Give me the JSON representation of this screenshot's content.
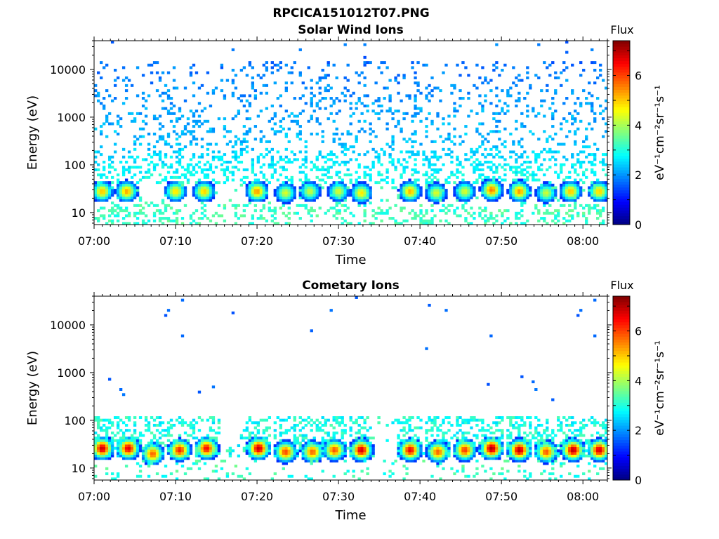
{
  "figure_title": "RPCICA151012T07.PNG",
  "colorbar": {
    "title": "Flux",
    "label": "eV⁻¹cm⁻²sr⁻¹s⁻¹",
    "ticks": [
      "0",
      "2",
      "4",
      "6"
    ],
    "range": [
      0,
      7.4
    ],
    "colormap": "jet"
  },
  "chart_data": [
    {
      "type": "heatmap",
      "title": "Solar Wind Ions",
      "xlabel": "Time",
      "ylabel": "Energy (eV)",
      "x_ticks": [
        "07:00",
        "07:10",
        "07:20",
        "07:30",
        "07:40",
        "07:50",
        "08:00"
      ],
      "y_ticks": [
        "10",
        "100",
        "1000",
        "10000"
      ],
      "y_scale": "log",
      "xlim": [
        "07:00",
        "08:03"
      ],
      "ylim": [
        5.6,
        40000
      ],
      "value_range": [
        0,
        7.4
      ],
      "bursts": [
        {
          "time_min": 1.0,
          "energy_ev": 28,
          "flux": 5.1
        },
        {
          "time_min": 4.0,
          "energy_ev": 28,
          "flux": 5.3
        },
        {
          "time_min": 10.0,
          "energy_ev": 28,
          "flux": 4.9
        },
        {
          "time_min": 13.5,
          "energy_ev": 28,
          "flux": 5.0
        },
        {
          "time_min": 20.0,
          "energy_ev": 28,
          "flux": 5.4
        },
        {
          "time_min": 23.5,
          "energy_ev": 26,
          "flux": 4.4
        },
        {
          "time_min": 26.5,
          "energy_ev": 28,
          "flux": 4.3
        },
        {
          "time_min": 30.0,
          "energy_ev": 28,
          "flux": 4.4
        },
        {
          "time_min": 32.8,
          "energy_ev": 26,
          "flux": 4.8
        },
        {
          "time_min": 38.8,
          "energy_ev": 28,
          "flux": 5.2
        },
        {
          "time_min": 42.0,
          "energy_ev": 26,
          "flux": 4.4
        },
        {
          "time_min": 45.5,
          "energy_ev": 28,
          "flux": 4.4
        },
        {
          "time_min": 48.8,
          "energy_ev": 30,
          "flux": 5.6
        },
        {
          "time_min": 52.2,
          "energy_ev": 28,
          "flux": 5.4
        },
        {
          "time_min": 55.5,
          "energy_ev": 26,
          "flux": 4.3
        },
        {
          "time_min": 58.5,
          "energy_ev": 28,
          "flux": 5.1
        },
        {
          "time_min": 62.0,
          "energy_ev": 28,
          "flux": 5.0
        }
      ]
    },
    {
      "type": "heatmap",
      "title": "Cometary Ions",
      "xlabel": "Time",
      "ylabel": "Energy (eV)",
      "x_ticks": [
        "07:00",
        "07:10",
        "07:20",
        "07:30",
        "07:40",
        "07:50",
        "08:00"
      ],
      "y_ticks": [
        "10",
        "100",
        "1000",
        "10000"
      ],
      "y_scale": "log",
      "xlim": [
        "07:00",
        "08:03"
      ],
      "ylim": [
        5.6,
        40000
      ],
      "value_range": [
        0,
        7.4
      ],
      "bursts": [
        {
          "time_min": 1.0,
          "energy_ev": 26,
          "flux": 6.9
        },
        {
          "time_min": 4.2,
          "energy_ev": 26,
          "flux": 6.7
        },
        {
          "time_min": 7.2,
          "energy_ev": 20,
          "flux": 5.8
        },
        {
          "time_min": 10.5,
          "energy_ev": 24,
          "flux": 6.3
        },
        {
          "time_min": 13.8,
          "energy_ev": 26,
          "flux": 6.5
        },
        {
          "time_min": 20.2,
          "energy_ev": 26,
          "flux": 6.9
        },
        {
          "time_min": 23.5,
          "energy_ev": 22,
          "flux": 6.0
        },
        {
          "time_min": 26.8,
          "energy_ev": 22,
          "flux": 5.8
        },
        {
          "time_min": 29.5,
          "energy_ev": 24,
          "flux": 5.9
        },
        {
          "time_min": 32.8,
          "energy_ev": 24,
          "flux": 6.8
        },
        {
          "time_min": 38.8,
          "energy_ev": 24,
          "flux": 6.6
        },
        {
          "time_min": 42.2,
          "energy_ev": 22,
          "flux": 5.8
        },
        {
          "time_min": 45.5,
          "energy_ev": 24,
          "flux": 6.1
        },
        {
          "time_min": 48.8,
          "energy_ev": 26,
          "flux": 7.1
        },
        {
          "time_min": 52.2,
          "energy_ev": 24,
          "flux": 7.0
        },
        {
          "time_min": 55.5,
          "energy_ev": 22,
          "flux": 5.9
        },
        {
          "time_min": 58.8,
          "energy_ev": 24,
          "flux": 7.0
        },
        {
          "time_min": 62.0,
          "energy_ev": 24,
          "flux": 6.8
        }
      ]
    }
  ]
}
